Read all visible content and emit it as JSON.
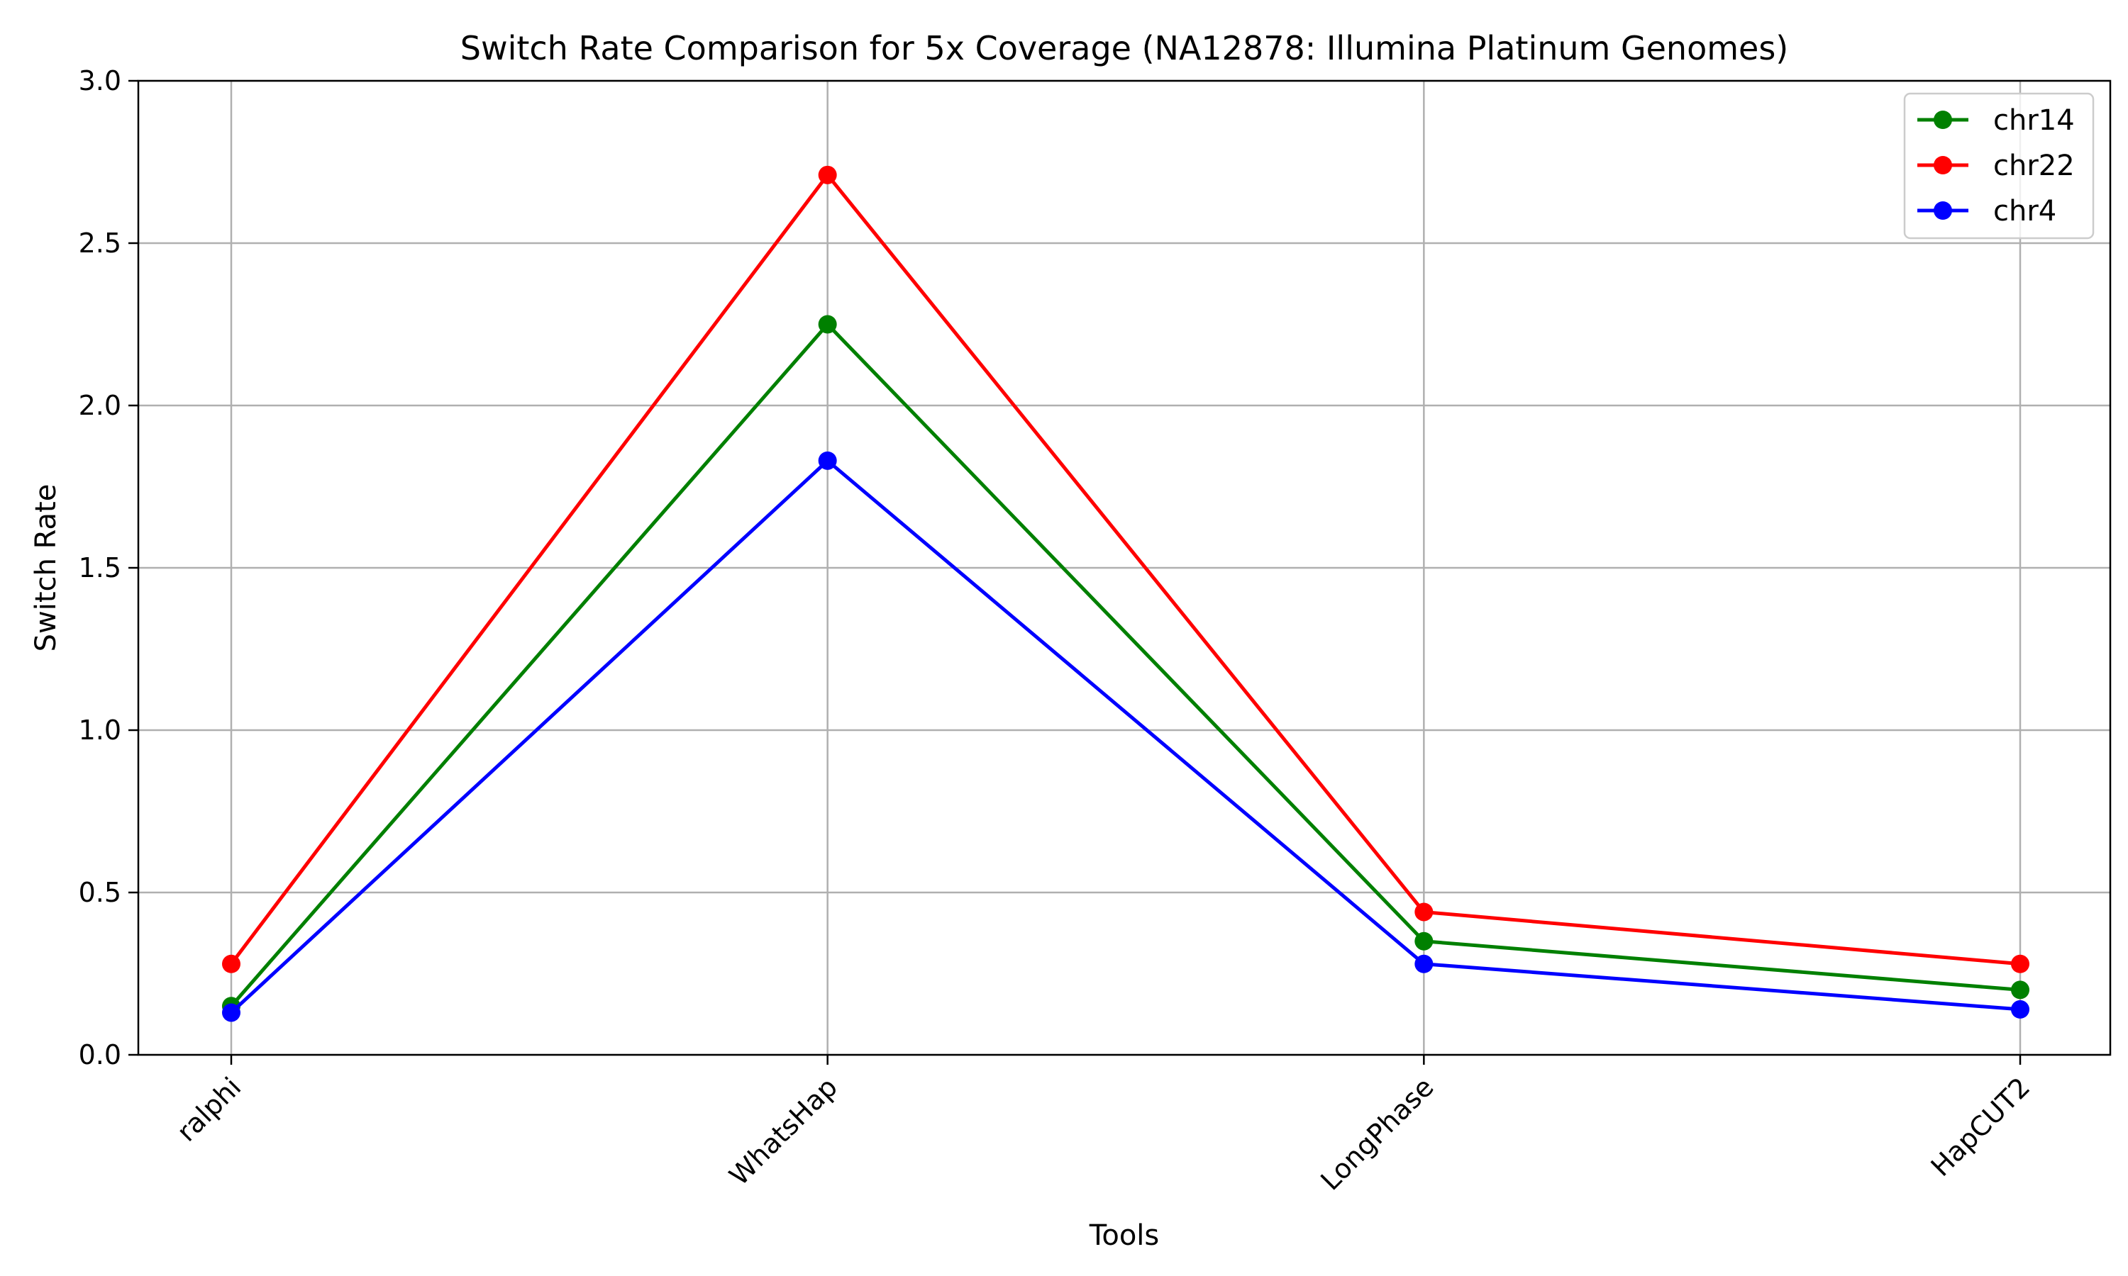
{
  "chart_data": {
    "type": "line",
    "title": "Switch Rate Comparison for 5x Coverage (NA12878: Illumina Platinum Genomes)",
    "xlabel": "Tools",
    "ylabel": "Switch Rate",
    "categories": [
      "ralphi",
      "WhatsHap",
      "LongPhase",
      "HapCUT2"
    ],
    "ylim": [
      0,
      3.0
    ],
    "yticks": [
      "0.0",
      "0.5",
      "1.0",
      "1.5",
      "2.0",
      "2.5",
      "3.0"
    ],
    "grid": true,
    "legend_position": "top-right",
    "series": [
      {
        "name": "chr14",
        "color": "#008000",
        "values": [
          0.15,
          2.25,
          0.35,
          0.2
        ]
      },
      {
        "name": "chr22",
        "color": "#ff0000",
        "values": [
          0.28,
          2.71,
          0.44,
          0.28
        ]
      },
      {
        "name": "chr4",
        "color": "#0000ff",
        "values": [
          0.13,
          1.83,
          0.28,
          0.14
        ]
      }
    ]
  }
}
